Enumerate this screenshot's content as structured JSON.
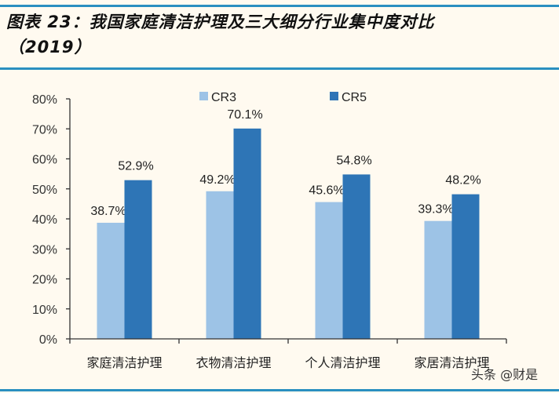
{
  "figure": {
    "title_line1": "图表 23：我国家庭清洁护理及三大细分行业集中度对比",
    "title_line2": "（2019）",
    "watermark": "头条 @财是"
  },
  "colors": {
    "rule": "#2a8fc0",
    "cr3": "#9dc3e6",
    "cr5": "#2e75b6",
    "axis": "#333333",
    "background": "#fffaf0"
  },
  "chart_data": {
    "type": "bar",
    "title": "我国家庭清洁护理及三大细分行业集中度对比（2019）",
    "categories": [
      "家庭清洁护理",
      "衣物清洁护理",
      "个人清洁护理",
      "家居清洁护理"
    ],
    "series": [
      {
        "name": "CR3",
        "values": [
          38.7,
          49.2,
          45.6,
          39.3
        ],
        "labels": [
          "38.7%",
          "49.2%",
          "45.6%",
          "39.3%"
        ]
      },
      {
        "name": "CR5",
        "values": [
          52.9,
          70.1,
          54.8,
          48.2
        ],
        "labels": [
          "52.9%",
          "70.1%",
          "54.8%",
          "48.2%"
        ]
      }
    ],
    "xlabel": "",
    "ylabel": "",
    "ylim": [
      0,
      80
    ],
    "yticks": [
      "0%",
      "10%",
      "20%",
      "30%",
      "40%",
      "50%",
      "60%",
      "70%",
      "80%"
    ],
    "grid": false,
    "legend_position": "top"
  }
}
